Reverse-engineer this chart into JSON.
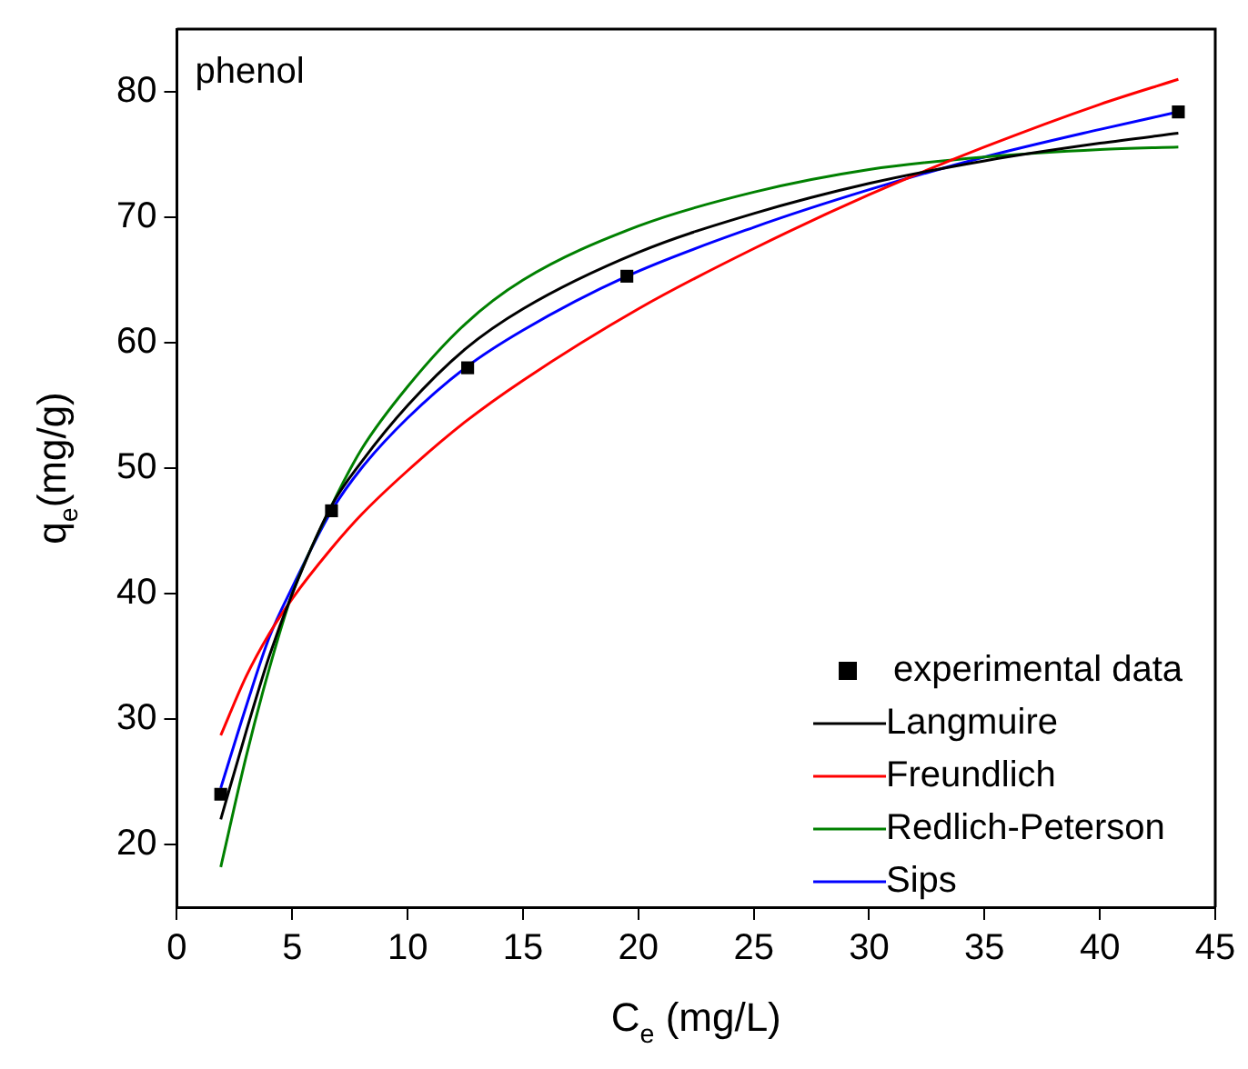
{
  "chart_data": {
    "type": "line",
    "xlabel": "C$_{e}$ (mg/L)",
    "ylabel": "q$_{e}$(mg/g)",
    "annotations": [
      "phenol"
    ],
    "xlim": [
      0,
      45
    ],
    "xticks": [
      0,
      5,
      10,
      15,
      20,
      25,
      30,
      35,
      40,
      45
    ],
    "ylim": [
      15,
      85
    ],
    "yticks": [
      20,
      30,
      40,
      50,
      60,
      70,
      80
    ],
    "grid": false,
    "legend": "bottom right",
    "line_style": "solid",
    "series": [
      {
        "name": "experimental data",
        "type": "scatter",
        "marker": "square",
        "color": "#000000",
        "x": [
          1.9,
          6.7,
          12.6,
          19.5,
          43.4
        ],
        "values": [
          24.0,
          46.6,
          58.0,
          65.3,
          78.4
        ]
      },
      {
        "name": "Langmuire",
        "marker": "none",
        "color": "#000000",
        "x": [
          1.9,
          3,
          4,
          5,
          6.7,
          8,
          10,
          12.5,
          15,
          20,
          25,
          30,
          35,
          40,
          43.4
        ],
        "values": [
          22,
          29,
          35,
          40,
          47,
          50.5,
          55,
          59.5,
          62.7,
          67.2,
          70.3,
          72.7,
          74.5,
          75.9,
          76.7
        ]
      },
      {
        "name": "Freundlich",
        "marker": "none",
        "color": "#ff0000",
        "x": [
          1.9,
          3,
          4,
          5,
          6.7,
          8,
          10,
          12.5,
          15,
          20,
          25,
          30,
          35,
          40,
          43.4
        ],
        "values": [
          28.7,
          33.4,
          36.8,
          39.6,
          43.6,
          46.3,
          49.8,
          53.7,
          57.0,
          62.7,
          67.5,
          71.8,
          75.6,
          79.0,
          81.0
        ]
      },
      {
        "name": "Redlich-Peterson",
        "marker": "none",
        "color": "#008000",
        "x": [
          1.9,
          3,
          4,
          5,
          6.7,
          8,
          10,
          12.5,
          15,
          20,
          25,
          30,
          35,
          40,
          43.4
        ],
        "values": [
          18.2,
          27,
          34,
          40,
          47,
          51.5,
          56.5,
          61.5,
          65,
          69.3,
          72,
          73.8,
          74.8,
          75.4,
          75.6
        ]
      },
      {
        "name": "Sips",
        "marker": "none",
        "color": "#0000ff",
        "x": [
          1.9,
          3,
          4,
          5,
          6.7,
          8,
          10,
          12.5,
          15,
          19.5,
          25,
          30,
          35,
          40,
          43.4
        ],
        "values": [
          24.5,
          31,
          36.5,
          40.5,
          46.6,
          50,
          54,
          58,
          61,
          65.3,
          69.2,
          72.2,
          74.8,
          77,
          78.4
        ]
      }
    ]
  }
}
